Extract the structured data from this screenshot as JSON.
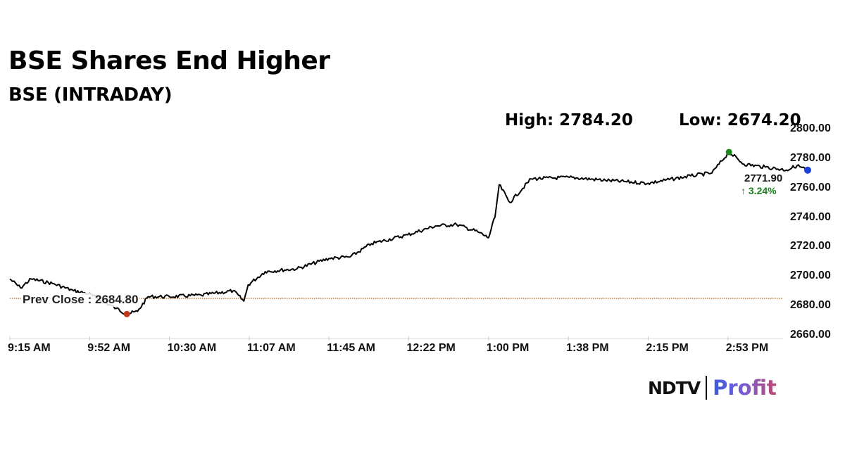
{
  "header": {
    "title": "BSE Shares End Higher",
    "subtitle": "BSE (INTRADAY)",
    "high_label": "High: 2784.20",
    "low_label": "Low: 2674.20"
  },
  "last": {
    "value": "2771.90",
    "change": "↑ 3.24%",
    "change_color": "#1a7f1a"
  },
  "prev_close": {
    "label": "Prev Close : 2684.80",
    "value": 2684.8,
    "color": "#b5651d"
  },
  "markers": {
    "high_color": "#1a8a1a",
    "low_color": "#c0391b",
    "last_color": "#1f3fd6"
  },
  "logo": {
    "ndtv": "NDTV",
    "profit": "Profit"
  },
  "chart_data": {
    "type": "line",
    "title": "BSE Shares End Higher",
    "subtitle": "BSE (INTRADAY)",
    "xlabel": "",
    "ylabel": "",
    "ylim": [
      2660,
      2800
    ],
    "y_ticks": [
      "2800.00",
      "2780.00",
      "2760.00",
      "2740.00",
      "2720.00",
      "2700.00",
      "2680.00",
      "2660.00"
    ],
    "x_ticks": [
      "9:15 AM",
      "9:52 AM",
      "10:30 AM",
      "11:07 AM",
      "11:45 AM",
      "12:22 PM",
      "1:00 PM",
      "1:38 PM",
      "2:15 PM",
      "2:53 PM"
    ],
    "grid": false,
    "legend": "none",
    "high": 2784.2,
    "low": 2674.2,
    "prev_close": 2684.8,
    "last": 2771.9,
    "change_pct": 3.24,
    "series": [
      {
        "name": "BSE",
        "x": [
          "9:15 AM",
          "9:20 AM",
          "9:25 AM",
          "9:35 AM",
          "9:45 AM",
          "9:52 AM",
          "10:05 AM",
          "10:10 AM",
          "10:15 AM",
          "10:20 AM",
          "10:30 AM",
          "10:45 AM",
          "11:00 AM",
          "11:05 AM",
          "11:07 AM",
          "11:15 AM",
          "11:30 AM",
          "11:45 AM",
          "11:55 AM",
          "12:05 PM",
          "12:22 PM",
          "12:35 PM",
          "12:45 PM",
          "12:55 PM",
          "1:00 PM",
          "1:03 PM",
          "1:05 PM",
          "1:10 PM",
          "1:20 PM",
          "1:38 PM",
          "1:55 PM",
          "2:15 PM",
          "2:35 PM",
          "2:45 PM",
          "2:53 PM",
          "3:00 PM",
          "3:10 PM",
          "3:20 PM",
          "3:25 PM",
          "3:30 PM"
        ],
        "values": [
          2698,
          2692,
          2698,
          2695,
          2690,
          2688,
          2678,
          2674.2,
          2676,
          2686,
          2686,
          2687,
          2690,
          2683,
          2694,
          2703,
          2705,
          2712,
          2713,
          2722,
          2728,
          2734,
          2735,
          2730,
          2726,
          2740,
          2762,
          2750,
          2766,
          2767,
          2765,
          2763,
          2768,
          2770,
          2784.2,
          2776,
          2774,
          2772,
          2775,
          2771.9
        ]
      }
    ]
  }
}
